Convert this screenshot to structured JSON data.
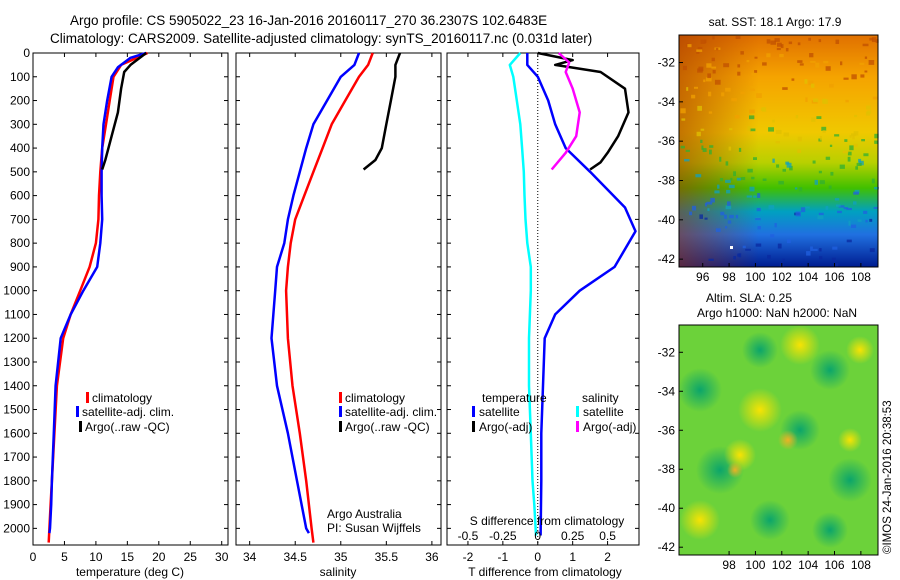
{
  "header": {
    "line1": "Argo profile: CS 5905022_23 16-Jan-2016 20160117_270 36.2307S 102.6483E",
    "line2": "Climatology: CARS2009. Satellite-adjusted climatology: synTS_20160117.nc (0.031d later)"
  },
  "colors": {
    "climatology": "#ff0000",
    "satellite": "#0000ff",
    "argo": "#000000",
    "salinity_sat": "#00ffff",
    "salinity_argo": "#ff00ff"
  },
  "chart_data": [
    {
      "type": "line",
      "xlabel": "temperature (deg C)",
      "xlim": [
        0,
        31
      ],
      "ylim": [
        2070,
        0
      ],
      "xticks": [
        "0",
        "5",
        "10",
        "15",
        "20",
        "25",
        "30"
      ],
      "yticks": [
        "0",
        "100",
        "200",
        "300",
        "400",
        "500",
        "600",
        "700",
        "800",
        "900",
        "1000",
        "1100",
        "1200",
        "1300",
        "1400",
        "1500",
        "1600",
        "1700",
        "1800",
        "1900",
        "2000"
      ],
      "legend": [
        "climatology",
        "satellite-adj. clim.",
        "Argo(..raw -QC)"
      ],
      "series": [
        {
          "name": "climatology",
          "color": "#ff0000",
          "x": [
            18.2,
            16.5,
            14.0,
            12.8,
            12.2,
            11.6,
            11.0,
            10.7,
            10.5,
            10.4,
            10.0,
            9.0,
            7.5,
            6.0,
            4.8,
            3.8,
            3.4,
            3.0,
            2.8,
            2.6,
            2.5
          ],
          "y": [
            0,
            20,
            50,
            100,
            200,
            300,
            400,
            500,
            600,
            700,
            800,
            900,
            1000,
            1100,
            1200,
            1400,
            1600,
            1800,
            1900,
            2000,
            2060
          ]
        },
        {
          "name": "satellite-adj. clim.",
          "color": "#0000ff",
          "x": [
            18.0,
            15.5,
            13.5,
            12.5,
            11.8,
            11.2,
            11.0,
            10.9,
            10.9,
            11.0,
            10.7,
            10.2,
            8.0,
            6.0,
            4.4,
            3.6,
            3.3,
            3.0,
            2.9,
            2.7,
            2.6
          ],
          "y": [
            0,
            20,
            60,
            100,
            200,
            300,
            400,
            500,
            600,
            700,
            800,
            900,
            1000,
            1100,
            1200,
            1400,
            1600,
            1800,
            1900,
            2000,
            2020
          ]
        },
        {
          "name": "Argo(..raw -QC)",
          "color": "#000000",
          "x": [
            18.0,
            17.0,
            15.5,
            14.5,
            14.0,
            13.5,
            12.5,
            11.5,
            11.0
          ],
          "y": [
            0,
            20,
            50,
            80,
            150,
            250,
            350,
            450,
            490
          ]
        }
      ]
    },
    {
      "type": "line",
      "xlabel": "salinity",
      "xlim": [
        33.85,
        36.1
      ],
      "ylim": [
        2070,
        0
      ],
      "xticks": [
        "34",
        "34.5",
        "35",
        "35.5",
        "36"
      ],
      "legend": [
        "climatology",
        "satellite-adj. clim.",
        "Argo(..raw -QC)"
      ],
      "annotations": [
        "Argo Australia",
        "PI: Susan Wijffels"
      ],
      "series": [
        {
          "name": "climatology",
          "color": "#ff0000",
          "x": [
            35.35,
            35.3,
            35.2,
            35.05,
            34.9,
            34.8,
            34.7,
            34.6,
            34.5,
            34.45,
            34.42,
            34.4,
            34.42,
            34.47,
            34.55,
            34.62,
            34.68,
            34.7
          ],
          "y": [
            0,
            50,
            100,
            200,
            300,
            400,
            500,
            600,
            700,
            800,
            900,
            1000,
            1200,
            1400,
            1600,
            1800,
            2000,
            2060
          ]
        },
        {
          "name": "satellite-adj. clim.",
          "color": "#0000ff",
          "x": [
            35.2,
            35.15,
            35.0,
            34.85,
            34.7,
            34.62,
            34.55,
            34.48,
            34.42,
            34.38,
            34.3,
            34.28,
            34.24,
            34.3,
            34.42,
            34.52,
            34.62,
            34.65
          ],
          "y": [
            0,
            50,
            100,
            200,
            300,
            400,
            500,
            600,
            700,
            800,
            900,
            1000,
            1200,
            1400,
            1600,
            1800,
            2000,
            2020
          ]
        },
        {
          "name": "Argo(..raw -QC)",
          "color": "#000000",
          "x": [
            35.65,
            35.6,
            35.6,
            35.55,
            35.5,
            35.45,
            35.38,
            35.25
          ],
          "y": [
            0,
            50,
            100,
            200,
            300,
            400,
            450,
            490
          ]
        }
      ]
    },
    {
      "type": "line",
      "xlabel": "T difference from climatology",
      "xlabel2": "S difference from climatology",
      "xlim": [
        -2.6,
        2.9
      ],
      "ylim": [
        2070,
        0
      ],
      "xticks": [
        "-2",
        "-1",
        "0",
        "1",
        "2"
      ],
      "xticks2": [
        "-0.5",
        "-0.25",
        "0",
        "0.25",
        "0.5"
      ],
      "legend_titles": [
        "temperature",
        "salinity"
      ],
      "legend": [
        "satellite",
        "Argo(-adj)",
        "satellite",
        "Argo(-adj)"
      ],
      "series": [
        {
          "name": "satellite",
          "color": "#0000ff",
          "x": [
            -0.3,
            -0.3,
            0.0,
            0.3,
            0.5,
            0.8,
            1.5,
            2.5,
            2.8,
            2.2,
            1.2,
            0.5,
            0.2,
            0.15,
            0.1,
            0.1,
            0.08
          ],
          "y": [
            0,
            50,
            100,
            200,
            300,
            400,
            500,
            650,
            750,
            900,
            1000,
            1100,
            1200,
            1400,
            1600,
            1800,
            2030
          ]
        },
        {
          "name": "Argo(-adj)",
          "color": "#000000",
          "x": [
            0.0,
            1.0,
            0.5,
            1.8,
            2.5,
            2.6,
            2.3,
            2.0,
            1.8,
            1.5
          ],
          "y": [
            0,
            30,
            50,
            80,
            150,
            250,
            350,
            420,
            460,
            490
          ]
        },
        {
          "name": "satellite",
          "color": "#00ffff",
          "x": [
            -0.5,
            -0.8,
            -0.7,
            -0.6,
            -0.5,
            -0.45,
            -0.4,
            -0.38,
            -0.35,
            -0.3,
            -0.2,
            -0.2,
            -0.25,
            -0.25,
            -0.2,
            -0.15,
            -0.1,
            -0.05
          ],
          "y": [
            0,
            50,
            100,
            200,
            300,
            400,
            500,
            600,
            700,
            800,
            900,
            1000,
            1200,
            1400,
            1600,
            1800,
            1900,
            2030
          ]
        },
        {
          "name": "Argo(-adj)",
          "color": "#ff00ff",
          "x": [
            0.6,
            0.9,
            0.8,
            1.0,
            1.2,
            1.1,
            0.8,
            0.4
          ],
          "y": [
            0,
            40,
            80,
            150,
            250,
            350,
            420,
            490
          ]
        }
      ]
    }
  ],
  "map_sst": {
    "title": "sat. SST: 18.1 Argo: 17.9",
    "xticks": [
      "96",
      "98",
      "100",
      "102",
      "104",
      "106",
      "108"
    ],
    "yticks": [
      "-32",
      "-34",
      "-36",
      "-38",
      "-40",
      "-42"
    ]
  },
  "map_sla": {
    "title1": "Altim. SLA: 0.25",
    "title2": "Argo h1000: NaN h2000: NaN",
    "xticks": [
      "98",
      "100",
      "102",
      "104",
      "106",
      "108"
    ],
    "yticks": [
      "-32",
      "-34",
      "-36",
      "-38",
      "-40",
      "-42"
    ]
  },
  "footer": {
    "credit": "©IMOS 24-Jan-2016 20:38:53"
  }
}
